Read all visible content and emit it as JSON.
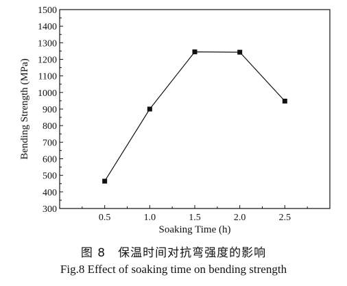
{
  "caption": {
    "chinese": "图 8　保温时间对抗弯强度的影响",
    "english": "Fig.8 Effect of soaking time on bending strength"
  },
  "chart_data": {
    "type": "line",
    "title": "",
    "xlabel": "Soaking Time (h)",
    "ylabel": "Bending Strength (MPa)",
    "xlim": [
      0,
      3.0
    ],
    "ylim": [
      300,
      1500
    ],
    "x_ticks": [
      0.5,
      1.0,
      1.5,
      2.0,
      2.5
    ],
    "x_tick_labels": [
      "0.5",
      "1.0",
      "1.5",
      "2.0",
      "2.5"
    ],
    "y_ticks": [
      300,
      400,
      500,
      600,
      700,
      800,
      900,
      1000,
      1100,
      1200,
      1300,
      1400,
      1500
    ],
    "y_tick_labels": [
      "300",
      "400",
      "500",
      "600",
      "700",
      "800",
      "900",
      "1000",
      "1100",
      "1200",
      "1300",
      "1400",
      "1500"
    ],
    "grid": false,
    "legend": "none",
    "series": [
      {
        "marker": "square",
        "color": "#111111",
        "x": [
          0.5,
          1.0,
          1.5,
          2.0,
          2.5
        ],
        "y": [
          465,
          900,
          1245,
          1243,
          948
        ]
      }
    ]
  }
}
